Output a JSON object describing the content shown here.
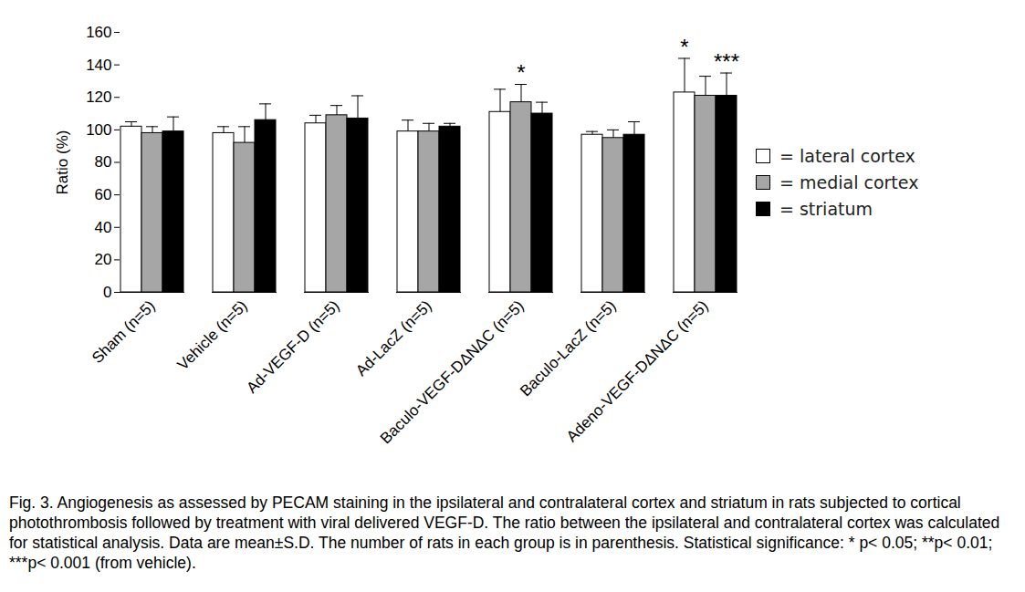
{
  "chart_data": {
    "type": "bar",
    "y_label": "Ratio (%)",
    "caption": "Fig. 3. Angiogenesis as assessed by PECAM staining in the ipsilateral and contralateral cortex and striatum in rats subjected to cortical photothrombosis followed by treatment with viral delivered VEGF-D. The ratio between the ipsilateral and contralateral cortex was calculated for statistical analysis. Data are mean±S.D. The number of rats in each group is in parenthesis. Statistical significance: * p< 0.05; **p< 0.01; ***p< 0.001 (from vehicle).",
    "categories": [
      "Sham (n=5)",
      "Vehicle (n=5)",
      "Ad-VEGF-D (n=5)",
      "Ad-LacZ (n=5)",
      "Baculo-VEGF-DΔNΔC (n=5)",
      "Baculo-LacZ (n=5)",
      "Adeno-VEGF-DΔNΔC (n=5)"
    ],
    "series": [
      {
        "name": "= lateral cortex",
        "color": "#ffffff",
        "values": [
          102,
          98,
          104,
          99,
          111,
          97,
          123
        ],
        "errors": [
          3,
          4,
          5,
          7,
          14,
          2,
          21
        ]
      },
      {
        "name": "= medial cortex",
        "color": "#a6a6a6",
        "values": [
          98,
          92,
          109,
          99,
          117,
          95,
          121
        ],
        "errors": [
          4,
          10,
          6,
          5,
          11,
          5,
          12
        ]
      },
      {
        "name": "= striatum",
        "color": "#000000",
        "values": [
          99,
          106,
          107,
          102,
          110,
          97,
          121
        ],
        "errors": [
          9,
          10,
          14,
          2,
          7,
          8,
          14
        ]
      }
    ],
    "annotations": [
      {
        "category": "Baculo-VEGF-DΔNΔC (n=5)",
        "series": "= medial cortex",
        "text": "*"
      },
      {
        "category": "Adeno-VEGF-DΔNΔC (n=5)",
        "series": "= lateral cortex",
        "text": "*"
      },
      {
        "category": "Adeno-VEGF-DΔNΔC (n=5)",
        "series": "= striatum",
        "text": "***"
      }
    ],
    "ylim": [
      0,
      160
    ],
    "yticks": [
      0,
      20,
      40,
      60,
      80,
      100,
      120,
      140,
      160
    ],
    "grid": false,
    "legend": "right"
  }
}
